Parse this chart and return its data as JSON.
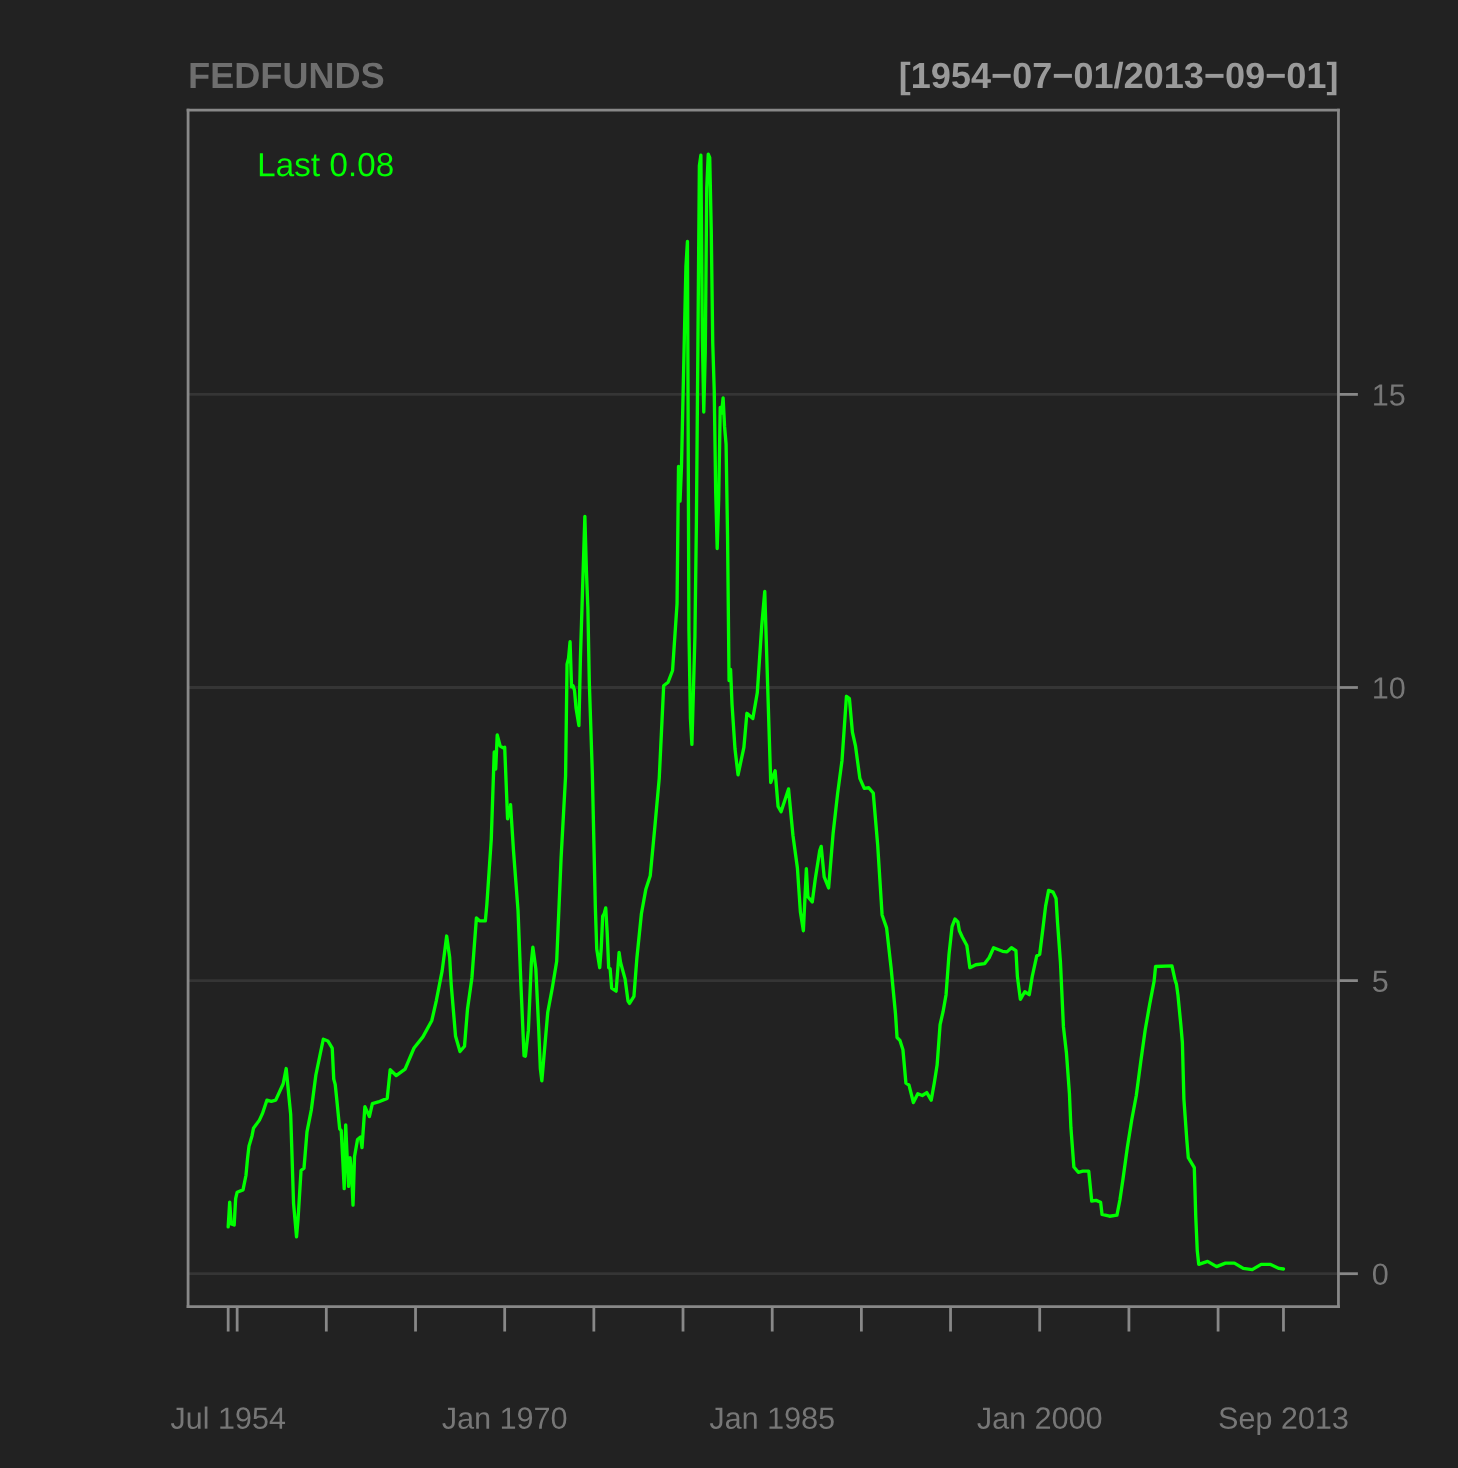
{
  "chart_data": {
    "type": "line",
    "title": "FEDFUNDS",
    "subtitle": "[1954−07−01/2013−09−01]",
    "annotations": [
      "Last 0.08"
    ],
    "x": [
      "1954-07",
      "1954-08",
      "1954-09",
      "1954-11",
      "1954-12",
      "1955-01",
      "1955-05",
      "1955-07",
      "1955-08",
      "1955-09",
      "1955-11",
      "1955-12",
      "1956-04",
      "1956-06",
      "1956-09",
      "1956-12",
      "1957-03",
      "1957-08",
      "1957-10",
      "1957-12",
      "1958-01",
      "1958-03",
      "1958-05",
      "1958-06",
      "1958-08",
      "1958-10",
      "1958-12",
      "1959-03",
      "1959-06",
      "1959-09",
      "1959-11",
      "1959-12",
      "1960-02",
      "1960-05",
      "1960-06",
      "1960-07",
      "1960-08",
      "1960-10",
      "1960-11",
      "1960-12",
      "1961-01",
      "1961-02",
      "1961-03",
      "1961-04",
      "1961-05",
      "1961-06",
      "1961-07",
      "1961-08",
      "1961-10",
      "1961-12",
      "1962-01",
      "1962-03",
      "1962-06",
      "1962-08",
      "1962-12",
      "1963-06",
      "1963-08",
      "1963-12",
      "1964-06",
      "1964-12",
      "1965-06",
      "1965-12",
      "1966-03",
      "1966-07",
      "1966-10",
      "1966-12",
      "1967-01",
      "1967-04",
      "1967-07",
      "1967-10",
      "1967-12",
      "1968-03",
      "1968-06",
      "1968-08",
      "1968-12",
      "1969-01",
      "1969-04",
      "1969-06",
      "1969-07",
      "1969-08",
      "1969-10",
      "1969-12",
      "1970-01",
      "1970-03",
      "1970-05",
      "1970-07",
      "1970-10",
      "1970-12",
      "1971-02",
      "1971-03",
      "1971-05",
      "1971-07",
      "1971-08",
      "1971-10",
      "1971-12",
      "1972-01",
      "1972-02",
      "1972-06",
      "1972-09",
      "1972-12",
      "1973-03",
      "1973-06",
      "1973-07",
      "1973-08",
      "1973-09",
      "1973-10",
      "1973-11",
      "1973-12",
      "1974-01",
      "1974-03",
      "1974-04",
      "1974-05",
      "1974-07",
      "1974-08",
      "1974-09",
      "1974-10",
      "1974-12",
      "1975-02",
      "1975-03",
      "1975-05",
      "1975-06",
      "1975-07",
      "1975-08",
      "1975-09",
      "1975-10",
      "1975-11",
      "1975-12",
      "1976-01",
      "1976-04",
      "1976-06",
      "1976-07",
      "1976-10",
      "1976-12",
      "1977-01",
      "1977-04",
      "1977-06",
      "1977-09",
      "1977-12",
      "1978-03",
      "1978-06",
      "1978-09",
      "1978-12",
      "1979-03",
      "1979-06",
      "1979-09",
      "1979-10",
      "1979-11",
      "1979-12",
      "1980-03",
      "1980-04",
      "1980-05",
      "1980-06",
      "1980-07",
      "1980-09",
      "1980-10",
      "1980-11",
      "1980-12",
      "1981-01",
      "1981-02",
      "1981-03",
      "1981-04",
      "1981-05",
      "1981-06",
      "1981-07",
      "1981-08",
      "1981-09",
      "1981-10",
      "1981-11",
      "1981-12",
      "1982-01",
      "1982-02",
      "1982-03",
      "1982-04",
      "1982-05",
      "1982-06",
      "1982-07",
      "1982-08",
      "1982-09",
      "1982-10",
      "1982-12",
      "1983-02",
      "1983-06",
      "1983-08",
      "1983-12",
      "1984-03",
      "1984-06",
      "1984-08",
      "1984-10",
      "1984-12",
      "1985-03",
      "1985-05",
      "1985-07",
      "1985-12",
      "1986-03",
      "1986-06",
      "1986-08",
      "1986-10",
      "1986-12",
      "1987-01",
      "1987-04",
      "1987-06",
      "1987-09",
      "1987-10",
      "1987-12",
      "1988-03",
      "1988-06",
      "1988-09",
      "1988-12",
      "1989-03",
      "1989-05",
      "1989-07",
      "1989-09",
      "1989-12",
      "1990-03",
      "1990-06",
      "1990-09",
      "1990-12",
      "1991-03",
      "1991-06",
      "1991-09",
      "1991-12",
      "1992-01",
      "1992-03",
      "1992-05",
      "1992-07",
      "1992-09",
      "1992-12",
      "1993-03",
      "1993-06",
      "1993-09",
      "1993-12",
      "1994-02",
      "1994-04",
      "1994-06",
      "1994-08",
      "1994-10",
      "1994-12",
      "1995-02",
      "1995-04",
      "1995-06",
      "1995-07",
      "1995-09",
      "1995-12",
      "1996-02",
      "1996-06",
      "1996-12",
      "1997-03",
      "1997-06",
      "1997-12",
      "1998-03",
      "1998-06",
      "1998-09",
      "1998-10",
      "1998-12",
      "1999-03",
      "1999-06",
      "1999-08",
      "1999-11",
      "2000-01",
      "2000-03",
      "2000-05",
      "2000-07",
      "2000-10",
      "2000-12",
      "2001-01",
      "2001-03",
      "2001-05",
      "2001-07",
      "2001-09",
      "2001-10",
      "2001-12",
      "2002-03",
      "2002-06",
      "2002-10",
      "2002-12",
      "2003-03",
      "2003-06",
      "2003-07",
      "2003-12",
      "2004-05",
      "2004-07",
      "2004-09",
      "2004-12",
      "2005-03",
      "2005-06",
      "2005-09",
      "2005-12",
      "2006-03",
      "2006-06",
      "2006-07",
      "2007-06",
      "2007-08",
      "2007-09",
      "2007-10",
      "2007-12",
      "2008-01",
      "2008-02",
      "2008-04",
      "2008-05",
      "2008-09",
      "2008-10",
      "2008-11",
      "2008-12",
      "2009-06",
      "2009-12",
      "2010-06",
      "2010-12",
      "2011-06",
      "2011-12",
      "2012-06",
      "2012-12",
      "2013-06",
      "2013-09"
    ],
    "series": [
      {
        "color": "#00ff00",
        "values": [
          0.8,
          1.22,
          0.85,
          0.83,
          1.28,
          1.39,
          1.43,
          1.68,
          1.96,
          2.18,
          2.35,
          2.48,
          2.62,
          2.73,
          2.96,
          2.94,
          2.96,
          3.24,
          3.5,
          2.98,
          2.72,
          1.2,
          0.63,
          0.93,
          1.76,
          1.8,
          2.42,
          2.8,
          3.39,
          3.76,
          4.0,
          3.99,
          3.97,
          3.85,
          3.32,
          3.23,
          2.98,
          2.47,
          2.44,
          1.98,
          1.45,
          2.54,
          2.02,
          1.49,
          1.98,
          1.73,
          1.17,
          2.0,
          2.29,
          2.33,
          2.15,
          2.85,
          2.68,
          2.9,
          2.93,
          2.99,
          3.48,
          3.38,
          3.49,
          3.85,
          4.04,
          4.32,
          4.65,
          5.17,
          5.76,
          5.4,
          4.94,
          4.05,
          3.79,
          3.88,
          4.51,
          5.05,
          6.07,
          6.02,
          6.02,
          6.3,
          7.41,
          8.9,
          8.61,
          9.19,
          9.0,
          8.97,
          8.98,
          7.76,
          8.0,
          7.21,
          6.2,
          4.9,
          3.72,
          3.71,
          4.15,
          5.31,
          5.57,
          5.2,
          4.14,
          3.5,
          3.29,
          4.46,
          4.87,
          5.33,
          7.09,
          8.49,
          10.4,
          10.5,
          10.78,
          10.01,
          10.03,
          9.95,
          9.65,
          9.35,
          10.51,
          11.31,
          12.92,
          12.01,
          11.34,
          10.06,
          8.53,
          6.24,
          5.54,
          5.22,
          5.55,
          6.1,
          6.14,
          6.24,
          5.82,
          5.22,
          5.2,
          4.87,
          4.82,
          5.48,
          5.31,
          5.03,
          4.65,
          4.61,
          4.73,
          5.39,
          6.14,
          6.56,
          6.79,
          7.6,
          8.45,
          10.03,
          10.09,
          10.29,
          11.43,
          13.77,
          13.18,
          13.78,
          17.19,
          17.61,
          10.98,
          9.47,
          9.03,
          10.87,
          12.81,
          15.85,
          18.9,
          19.08,
          15.93,
          14.7,
          15.72,
          18.52,
          19.1,
          19.04,
          17.82,
          15.87,
          15.08,
          13.31,
          12.37,
          13.22,
          14.78,
          14.68,
          14.94,
          14.45,
          14.15,
          12.59,
          10.12,
          10.31,
          9.71,
          8.95,
          8.51,
          8.98,
          9.56,
          9.47,
          9.91,
          11.06,
          11.64,
          9.99,
          8.38,
          8.58,
          7.97,
          7.88,
          8.27,
          7.48,
          6.92,
          6.17,
          5.85,
          6.91,
          6.43,
          6.34,
          6.73,
          7.22,
          7.29,
          6.77,
          6.58,
          7.51,
          8.19,
          8.76,
          9.85,
          9.81,
          9.24,
          9.01,
          8.45,
          8.28,
          8.29,
          8.2,
          7.31,
          6.12,
          5.9,
          5.22,
          4.43,
          4.03,
          3.98,
          3.82,
          3.25,
          3.22,
          2.92,
          3.07,
          3.04,
          3.09,
          2.96,
          3.25,
          3.56,
          4.25,
          4.47,
          4.76,
          5.45,
          5.92,
          6.05,
          6.0,
          5.85,
          5.74,
          5.6,
          5.22,
          5.27,
          5.29,
          5.39,
          5.56,
          5.5,
          5.49,
          5.56,
          5.51,
          5.07,
          4.68,
          4.81,
          4.76,
          5.07,
          5.42,
          5.45,
          5.85,
          6.27,
          6.54,
          6.51,
          6.4,
          5.98,
          5.31,
          4.21,
          3.77,
          3.07,
          2.49,
          1.82,
          1.73,
          1.75,
          1.75,
          1.24,
          1.25,
          1.22,
          1.01,
          0.98,
          1.0,
          1.26,
          1.61,
          2.16,
          2.63,
          3.04,
          3.62,
          4.16,
          4.59,
          4.99,
          5.24,
          5.25,
          5.02,
          4.94,
          4.76,
          4.24,
          3.94,
          2.98,
          2.28,
          1.98,
          1.81,
          0.97,
          0.39,
          0.16,
          0.21,
          0.12,
          0.18,
          0.18,
          0.09,
          0.07,
          0.16,
          0.16,
          0.09,
          0.08
        ]
      }
    ],
    "xlim": [
      "1952-04",
      "2016-10"
    ],
    "xticks": [
      {
        "value": "1954-07",
        "label": "Jul 1954"
      },
      {
        "value": "1955-01",
        "label": null
      },
      {
        "value": "1960-01",
        "label": null
      },
      {
        "value": "1965-01",
        "label": null
      },
      {
        "value": "1970-01",
        "label": "Jan 1970"
      },
      {
        "value": "1975-01",
        "label": null
      },
      {
        "value": "1980-01",
        "label": null
      },
      {
        "value": "1985-01",
        "label": "Jan 1985"
      },
      {
        "value": "1990-01",
        "label": null
      },
      {
        "value": "1995-01",
        "label": null
      },
      {
        "value": "2000-01",
        "label": "Jan 2000"
      },
      {
        "value": "2005-01",
        "label": null
      },
      {
        "value": "2010-01",
        "label": null
      },
      {
        "value": "2013-09",
        "label": "Sep 2013"
      }
    ],
    "ylim": [
      -0.56,
      19.85
    ],
    "yticks": [
      0,
      5,
      10,
      15
    ],
    "grid": "y",
    "line_style": "solid",
    "marker": "none"
  }
}
